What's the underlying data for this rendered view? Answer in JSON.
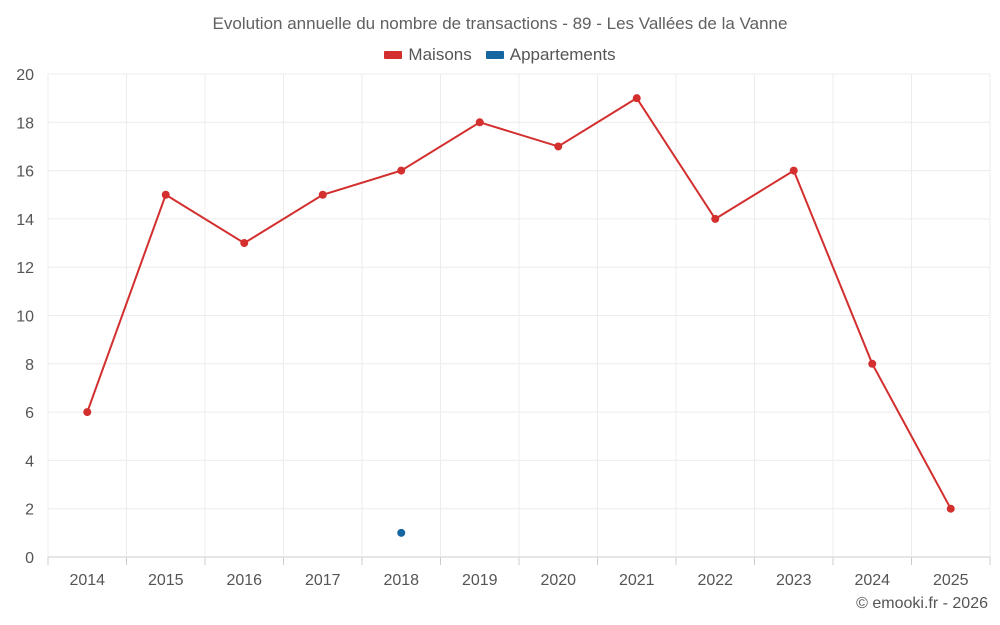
{
  "chart_data": {
    "type": "line",
    "title": "Evolution annuelle du nombre de transactions - 89 - Les Vallées de la Vanne",
    "categories": [
      "2014",
      "2015",
      "2016",
      "2017",
      "2018",
      "2019",
      "2020",
      "2021",
      "2022",
      "2023",
      "2024",
      "2025"
    ],
    "series": [
      {
        "name": "Maisons",
        "color": "#d32f2f",
        "values": [
          6,
          15,
          13,
          15,
          16,
          18,
          17,
          19,
          14,
          16,
          8,
          2
        ]
      },
      {
        "name": "Appartements",
        "color": "#1565a0",
        "values": [
          null,
          null,
          null,
          null,
          1,
          null,
          null,
          null,
          null,
          null,
          null,
          null
        ]
      }
    ],
    "ylim": [
      0,
      20
    ],
    "yticks": [
      "0",
      "2",
      "4",
      "6",
      "8",
      "10",
      "12",
      "14",
      "16",
      "18",
      "20"
    ],
    "grid": true,
    "legend_position": "top-center"
  },
  "credit": "© emooki.fr - 2026"
}
